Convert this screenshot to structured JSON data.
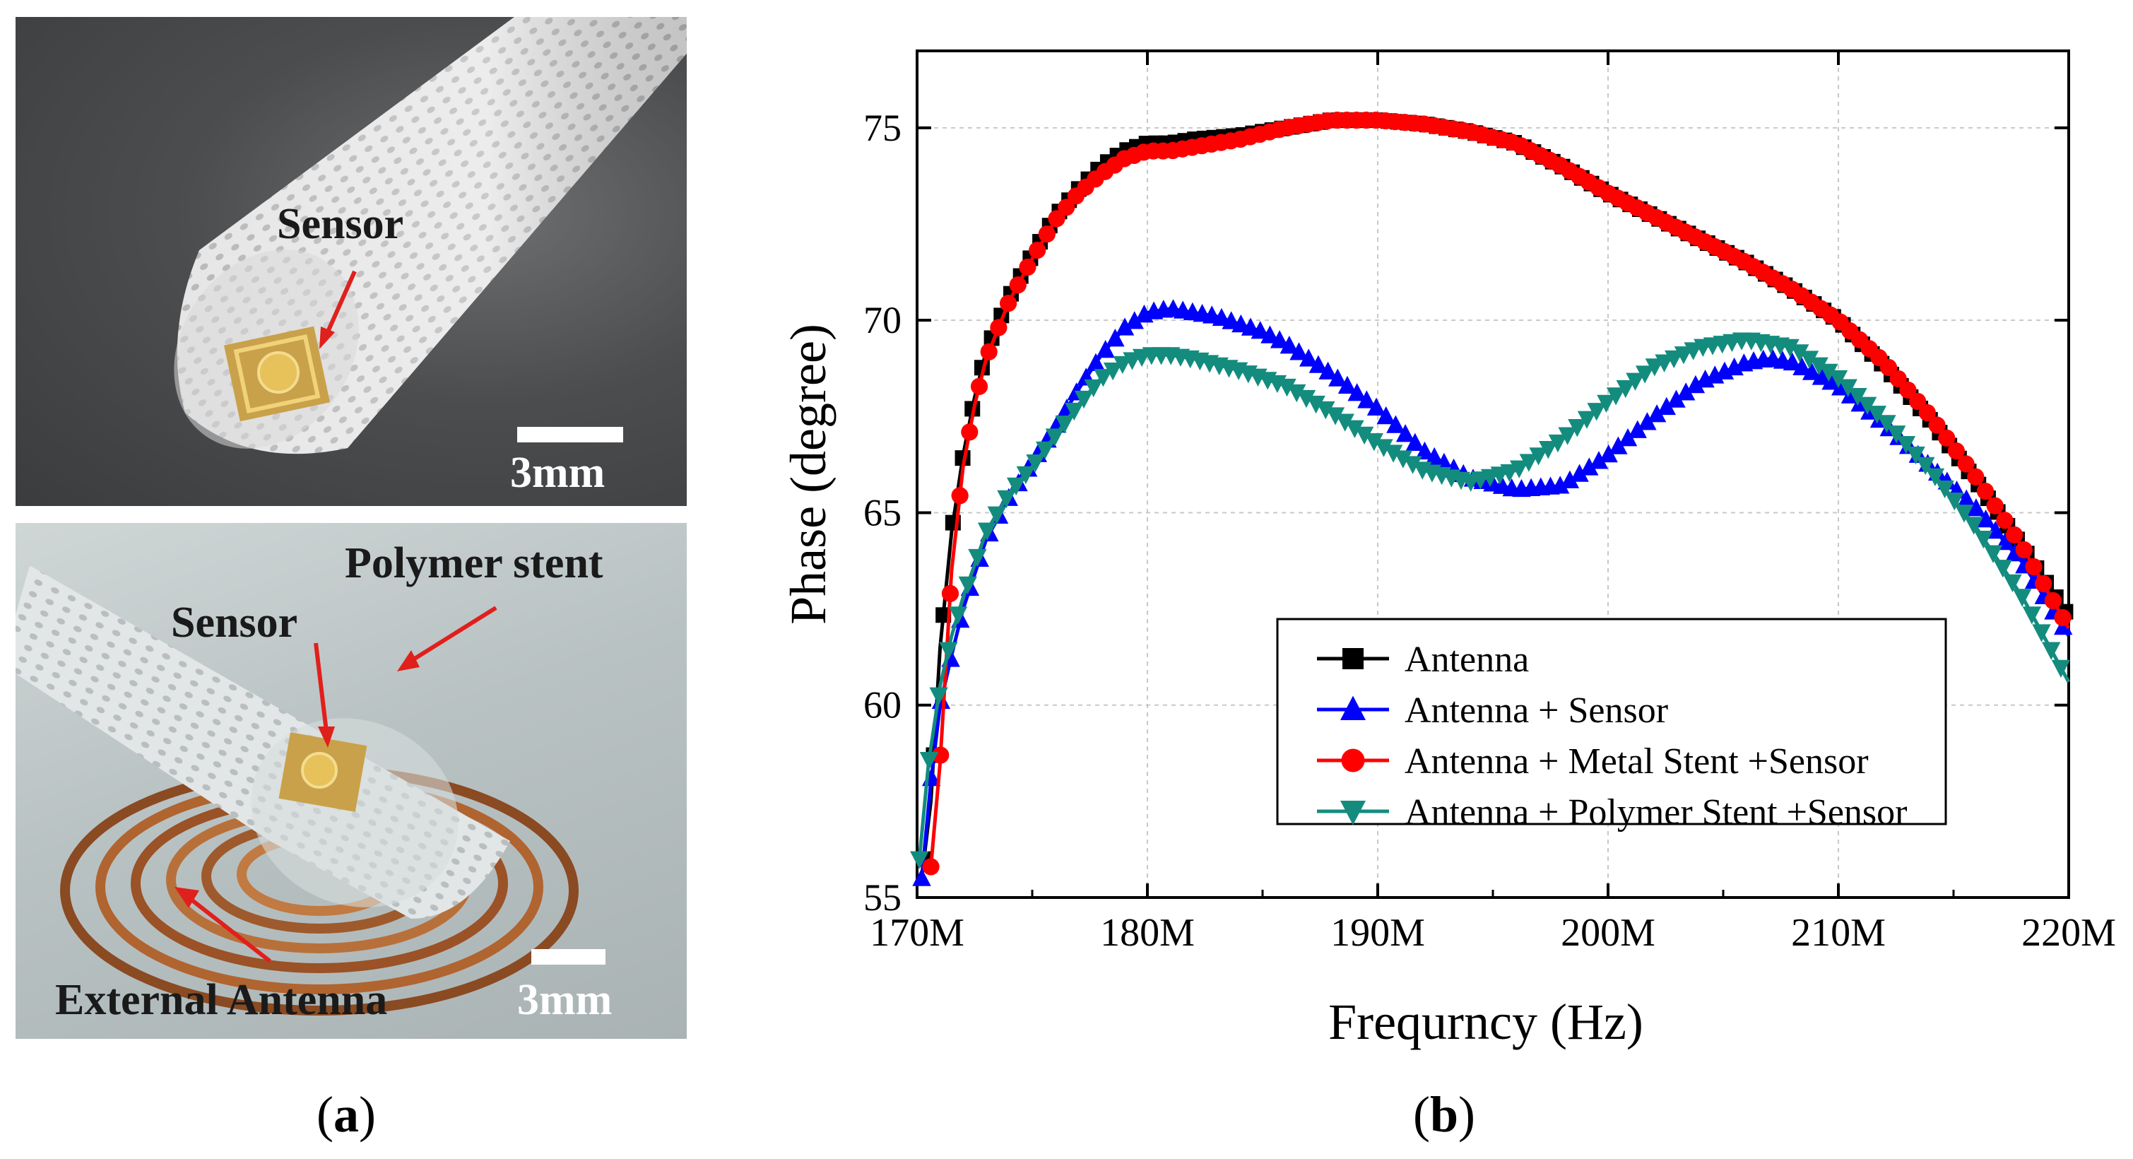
{
  "panel_a": {
    "label": "a",
    "top_photo": {
      "sensor_label": "Sensor",
      "scale_label": "3mm"
    },
    "bottom_photo": {
      "sensor_label": "Sensor",
      "stent_label": "Polymer stent",
      "antenna_label": "External Antenna",
      "scale_label": "3mm"
    }
  },
  "panel_b": {
    "label": "b"
  },
  "colors": {
    "antenna": "#000000",
    "sensor": "#0000ff",
    "metal": "#ff0000",
    "polymer": "#138c7e",
    "arrow": "#e0201c"
  },
  "chart_data": {
    "type": "line",
    "xlabel": "Frequrncy (Hz)",
    "ylabel": "Phase (degree)",
    "xlim": [
      170,
      220
    ],
    "ylim": [
      55,
      77
    ],
    "x_ticks": [
      170,
      180,
      190,
      200,
      210,
      220
    ],
    "x_tick_labels": [
      "170M",
      "180M",
      "190M",
      "200M",
      "210M",
      "220M"
    ],
    "y_ticks": [
      55,
      60,
      65,
      70,
      75
    ],
    "y_tick_labels": [
      "55",
      "60",
      "65",
      "70",
      "75"
    ],
    "grid": true,
    "legend_position": "bottom-right",
    "series": [
      {
        "name": "Antenna",
        "marker": "square",
        "color": "#000000",
        "x": [
          170.3,
          170.6,
          171,
          171.5,
          172,
          172.5,
          173,
          174,
          175,
          176,
          177,
          178,
          179,
          180,
          181,
          182,
          184,
          186,
          188,
          190,
          192,
          194,
          196,
          198,
          200,
          202,
          204,
          206,
          208,
          210,
          212,
          214,
          216,
          218,
          220
        ],
        "y": [
          56,
          57.5,
          61.5,
          64.5,
          66.5,
          68,
          69.2,
          70.6,
          71.7,
          72.7,
          73.4,
          74,
          74.4,
          74.6,
          74.6,
          74.7,
          74.8,
          75,
          75.2,
          75.2,
          75.1,
          74.9,
          74.6,
          74,
          73.3,
          72.7,
          72.1,
          71.5,
          70.8,
          70,
          68.8,
          67.4,
          65.8,
          64.1,
          62.3
        ]
      },
      {
        "name": "Antenna + Sensor",
        "marker": "triangle-up",
        "color": "#0000ff",
        "x": [
          170.2,
          170.6,
          171,
          171.5,
          172,
          173,
          174,
          175,
          176,
          177,
          178,
          179,
          180,
          181,
          182,
          183,
          184,
          185,
          186,
          188,
          190,
          192,
          194,
          196,
          198,
          200,
          202,
          204,
          206,
          207,
          208,
          210,
          212,
          214,
          216,
          218,
          220
        ],
        "y": [
          55.5,
          58,
          60,
          61.3,
          62.5,
          64.3,
          65.4,
          66.3,
          67.2,
          68.2,
          69.1,
          69.8,
          70.2,
          70.3,
          70.2,
          70.1,
          69.9,
          69.7,
          69.4,
          68.6,
          67.7,
          66.6,
          65.9,
          65.6,
          65.7,
          66.5,
          67.5,
          68.4,
          68.9,
          69,
          68.9,
          68.3,
          67.3,
          66.2,
          65.1,
          63.7,
          61.8
        ]
      },
      {
        "name": "Antenna + Metal Stent +Sensor",
        "marker": "circle",
        "color": "#ff0000",
        "x": [
          170.6,
          171,
          171.5,
          172,
          172.5,
          173,
          174,
          175,
          176,
          177,
          178,
          179,
          180,
          181,
          182,
          184,
          186,
          188,
          190,
          192,
          194,
          196,
          198,
          200,
          202,
          204,
          206,
          208,
          210,
          212,
          214,
          216,
          218,
          220
        ],
        "y": [
          55.8,
          58.5,
          63.5,
          66.2,
          67.8,
          69,
          70.5,
          71.6,
          72.6,
          73.3,
          73.8,
          74.2,
          74.4,
          74.4,
          74.5,
          74.7,
          75,
          75.2,
          75.2,
          75.1,
          74.9,
          74.6,
          74,
          73.3,
          72.7,
          72.1,
          71.5,
          70.8,
          70,
          68.9,
          67.5,
          65.9,
          64.1,
          62
        ]
      },
      {
        "name": "Antenna + Polymer Stent +Sensor",
        "marker": "triangle-down",
        "color": "#138c7e",
        "x": [
          170.1,
          170.5,
          171,
          171.5,
          172,
          173,
          174,
          175,
          176,
          177,
          178,
          179,
          180,
          181,
          182,
          184,
          186,
          188,
          190,
          192,
          194,
          196,
          198,
          200,
          202,
          204,
          206,
          208,
          210,
          212,
          214,
          216,
          218,
          220
        ],
        "y": [
          56,
          58.5,
          60.5,
          61.8,
          62.8,
          64.5,
          65.5,
          66.2,
          67,
          67.8,
          68.5,
          68.9,
          69.1,
          69.1,
          69,
          68.7,
          68.3,
          67.6,
          66.8,
          66.1,
          65.8,
          66.1,
          66.9,
          67.9,
          68.8,
          69.3,
          69.5,
          69.3,
          68.5,
          67.4,
          66.1,
          64.6,
          62.8,
          60.6
        ]
      }
    ]
  }
}
